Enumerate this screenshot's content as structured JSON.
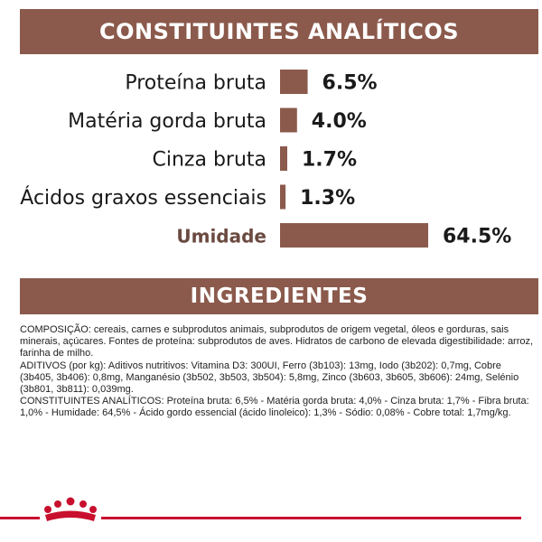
{
  "header": {
    "title": "CONSTITUINTES ANALÍTICOS"
  },
  "chart_data": {
    "type": "bar",
    "orientation": "horizontal",
    "categories": [
      "Proteína bruta",
      "Matéria gorda bruta",
      "Cinza bruta",
      "Ácidos graxos essenciais",
      "Umidade"
    ],
    "values": [
      6.5,
      4.0,
      1.7,
      1.3,
      64.5
    ],
    "value_labels": [
      "6.5%",
      "4.0%",
      "1.7%",
      "1.3%",
      "64.5%"
    ],
    "unit": "%",
    "bar_color": "#8b5a4c",
    "label_colors": [
      "#1a1a1a",
      "#1a1a1a",
      "#1a1a1a",
      "#1a1a1a",
      "#6b4a40"
    ],
    "title": "",
    "grid": false,
    "legend": "none"
  },
  "ingredients": {
    "title": "INGREDIENTES",
    "paragraphs": [
      "COMPOSIÇÃO: cereais, carnes e subprodutos animais, subprodutos de origem vegetal, óleos e gorduras, sais minerais, açúcares. Fontes de proteína: subprodutos de aves. Hidratos de carbono de elevada digestibilidade: arroz, farinha de milho.",
      "ADITIVOS (por kg): Aditivos nutritivos: Vitamina D3: 300UI, Ferro (3b103): 13mg, Iodo (3b202): 0,7mg, Cobre (3b405, 3b406): 0,8mg, Manganésio (3b502, 3b503, 3b504): 5,8mg, Zinco (3b603, 3b605, 3b606): 24mg, Selénio (3b801, 3b811): 0,039mg.",
      "CONSTITUINTES ANALÍTICOS: Proteína bruta: 6,5% - Matéria gorda bruta: 4,0% - Cinza bruta: 1,7% - Fibra bruta: 1,0% - Humidade: 64,5% - Ácido gordo essencial (ácido linoleico): 1,3% - Sódio: 0,08% - Cobre total: 1,7mg/kg."
    ]
  },
  "footer": {
    "logo_icon": "royal-canin-crown-icon",
    "accent_color": "#c8102e"
  }
}
